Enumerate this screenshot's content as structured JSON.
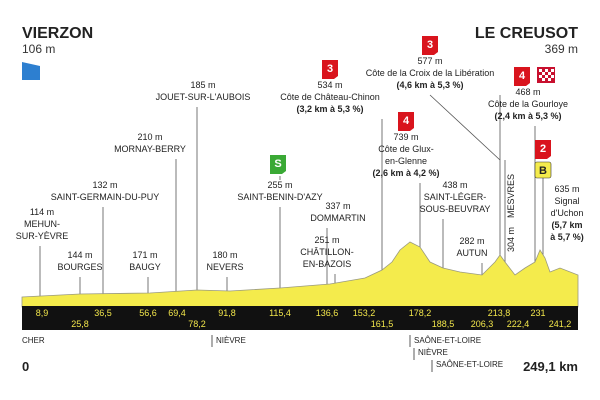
{
  "start": {
    "name": "VIERZON",
    "altitude": "106 m"
  },
  "finish": {
    "name": "LE CREUSOT",
    "altitude": "369 m"
  },
  "places": [
    {
      "altitude": "114 m",
      "name": [
        "MEHUN-",
        "SUR-YÈVRE"
      ]
    },
    {
      "altitude": "144 m",
      "name": [
        "BOURGES"
      ]
    },
    {
      "altitude": "132 m",
      "name": [
        "SAINT-GERMAIN-DU-PUY"
      ]
    },
    {
      "altitude": "210 m",
      "name": [
        "MORNAY-BERRY"
      ]
    },
    {
      "altitude": "171 m",
      "name": [
        "BAUGY"
      ]
    },
    {
      "altitude": "185 m",
      "name": [
        "JOUET-SUR-L'AUBOIS"
      ]
    },
    {
      "altitude": "180 m",
      "name": [
        "NEVERS"
      ]
    },
    {
      "altitude": "255 m",
      "name": [
        "SAINT-BENIN-D'AZY"
      ]
    },
    {
      "altitude": "337 m",
      "name": [
        "DOMMARTIN"
      ]
    },
    {
      "altitude": "251 m",
      "name": [
        "CHÂTILLON-",
        "EN-BAZOIS"
      ]
    },
    {
      "altitude": "438 m",
      "name": [
        "SAINT-LÉGER-",
        "SOUS-BEUVRAY"
      ]
    },
    {
      "altitude": "282 m",
      "name": [
        "AUTUN"
      ]
    },
    {
      "altitude": "304 m",
      "name": [
        "MESVRES"
      ]
    }
  ],
  "climbs": [
    {
      "category": "3",
      "altitude": "534 m",
      "name": [
        "Côte de Château-Chinon"
      ],
      "stats": [
        "(3,2 km à 5,3 %)"
      ]
    },
    {
      "category": "4",
      "altitude": "739 m",
      "name": [
        "Côte de Glux-",
        "en-Glenne"
      ],
      "stats": [
        "(2,6 km à 4,2 %)"
      ]
    },
    {
      "category": "3",
      "altitude": "577 m",
      "name": [
        "Côte de la Croix de la Libération"
      ],
      "stats": [
        "(4,6 km à 5,3 %)"
      ]
    },
    {
      "category": "4",
      "altitude": "468 m",
      "name": [
        "Côte de la Gourloye"
      ],
      "stats": [
        "(2,4 km à 5,3 %)"
      ]
    },
    {
      "category": "2",
      "altitude": "635 m",
      "name": [
        "Signal",
        "d'Uchon"
      ],
      "stats": [
        "(5,7 km",
        "à 5,7 %)"
      ]
    }
  ],
  "sprint": "S",
  "bonus": "B",
  "kilometers": [
    "8,9",
    "25,8",
    "36,5",
    "56,6",
    "69,4",
    "78,2",
    "91,8",
    "115,4",
    "136,6",
    "153,2",
    "161,5",
    "178,2",
    "188,5",
    "206,3",
    "213,8",
    "222,4",
    "231",
    "241,2"
  ],
  "distance_start": "0",
  "distance_total": "249,1 km",
  "departments": [
    "CHER",
    "NIÈVRE",
    "SAÔNE-ET-LOIRE",
    "NIÈVRE",
    "SAÔNE-ET-LOIRE"
  ]
}
